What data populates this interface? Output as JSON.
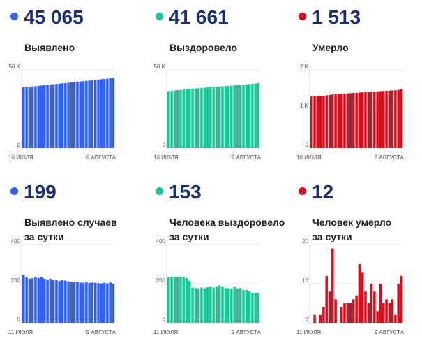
{
  "panels": [
    {
      "number": "45 065",
      "label_lines": [
        "Выявлено"
      ],
      "color": "#3060f0",
      "chart_data": {
        "type": "bar",
        "ylim": [
          0,
          50000
        ],
        "y_ticks": [
          {
            "value": 0,
            "label": "0"
          },
          {
            "value": 50000,
            "label": "50 K"
          }
        ],
        "x_labels": [
          "10 ИЮЛЯ",
          "9 АВГУСТА"
        ],
        "values": [
          38800,
          39000,
          39200,
          39400,
          39600,
          39800,
          40000,
          40200,
          40400,
          40600,
          40800,
          41000,
          41200,
          41400,
          41600,
          41800,
          42000,
          42200,
          42400,
          42600,
          42800,
          43000,
          43200,
          43400,
          43600,
          43800,
          44000,
          44200,
          44400,
          44600,
          44865
        ]
      }
    },
    {
      "number": "41 661",
      "label_lines": [
        "Выздоровело"
      ],
      "color": "#1dc49a",
      "chart_data": {
        "type": "bar",
        "ylim": [
          0,
          50000
        ],
        "y_ticks": [
          {
            "value": 0,
            "label": "0"
          },
          {
            "value": 50000,
            "label": "50 K"
          }
        ],
        "x_labels": [
          "10 ИЮЛЯ",
          "9 АВГУСТА"
        ],
        "values": [
          36400,
          36600,
          36800,
          37000,
          37200,
          37400,
          37600,
          37800,
          38000,
          38150,
          38300,
          38450,
          38600,
          38750,
          38900,
          39050,
          39200,
          39350,
          39500,
          39650,
          39800,
          39950,
          40100,
          40250,
          40400,
          40550,
          40700,
          40900,
          41100,
          41300,
          41508
        ]
      }
    },
    {
      "number": "1 513",
      "label_lines": [
        "Умерло"
      ],
      "color": "#d0101e",
      "chart_data": {
        "type": "bar",
        "ylim": [
          0,
          2000
        ],
        "y_ticks": [
          {
            "value": 0,
            "label": "0"
          },
          {
            "value": 1000,
            "label": "1 K"
          },
          {
            "value": 2000,
            "label": "2 K"
          }
        ],
        "x_labels": [
          "10 ИЮЛЯ",
          "9 АВГУСТА"
        ],
        "values": [
          1320,
          1325,
          1330,
          1335,
          1340,
          1350,
          1360,
          1370,
          1380,
          1385,
          1390,
          1395,
          1400,
          1405,
          1410,
          1415,
          1420,
          1425,
          1430,
          1435,
          1440,
          1445,
          1450,
          1455,
          1460,
          1465,
          1470,
          1475,
          1480,
          1490,
          1501
        ]
      }
    },
    {
      "number": "199",
      "label_lines": [
        "Выявлено случаев",
        "за сутки"
      ],
      "color": "#3060f0",
      "chart_data": {
        "type": "bar",
        "ylim": [
          0,
          400
        ],
        "y_ticks": [
          {
            "value": 0,
            "label": "0"
          },
          {
            "value": 200,
            "label": "200"
          },
          {
            "value": 400,
            "label": "400"
          }
        ],
        "x_labels": [
          "11 ИЮЛЯ",
          "9 АВГУСТА"
        ],
        "values": [
          245,
          232,
          226,
          228,
          235,
          229,
          234,
          226,
          222,
          225,
          220,
          218,
          214,
          218,
          216,
          212,
          210,
          208,
          210,
          206,
          205,
          207,
          204,
          206,
          205,
          203,
          201,
          205,
          202,
          206,
          199
        ]
      }
    },
    {
      "number": "153",
      "label_lines": [
        "Человека выздоровело",
        "за сутки"
      ],
      "color": "#1dc49a",
      "chart_data": {
        "type": "bar",
        "ylim": [
          0,
          400
        ],
        "y_ticks": [
          {
            "value": 0,
            "label": "0"
          },
          {
            "value": 200,
            "label": "200"
          },
          {
            "value": 400,
            "label": "400"
          }
        ],
        "x_labels": [
          "11 ИЮЛЯ",
          "9 АВГУСТА"
        ],
        "values": [
          232,
          236,
          236,
          236,
          236,
          232,
          228,
          214,
          180,
          178,
          176,
          180,
          176,
          182,
          186,
          180,
          185,
          192,
          186,
          178,
          176,
          176,
          186,
          176,
          178,
          168,
          168,
          162,
          154,
          150,
          153
        ]
      }
    },
    {
      "number": "12",
      "label_lines": [
        "Человек умерло",
        "за сутки"
      ],
      "color": "#d0101e",
      "chart_data": {
        "type": "bar",
        "ylim": [
          0,
          20
        ],
        "y_ticks": [
          {
            "value": 0,
            "label": "0"
          },
          {
            "value": 10,
            "label": "10"
          },
          {
            "value": 20,
            "label": "20"
          }
        ],
        "x_labels": [
          "11 ИЮЛЯ",
          "9 АВГУСТА"
        ],
        "values": [
          0,
          2,
          0,
          2,
          4,
          12,
          8,
          19,
          6,
          0,
          4,
          5,
          5,
          5,
          6,
          7,
          15,
          13,
          8,
          5,
          10,
          8,
          3,
          10,
          5,
          6,
          5,
          6,
          2,
          10,
          12
        ]
      }
    }
  ]
}
